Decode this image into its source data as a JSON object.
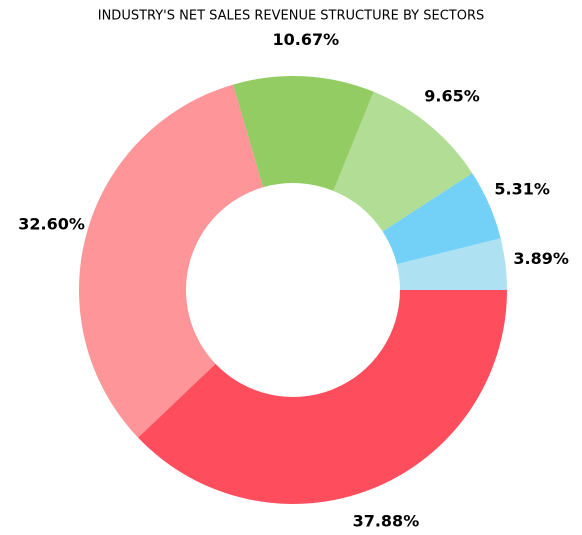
{
  "chart_data": {
    "type": "donut",
    "title": "INDUSTRY'S NET SALES REVENUE STRUCTURE BY SECTORS",
    "series": [
      {
        "values": [
          3.89,
          5.31,
          9.65,
          10.67,
          32.6,
          37.88
        ],
        "value_labels": [
          "3.89%",
          "5.31%",
          "9.65%",
          "10.67%",
          "32.60%",
          "37.88%"
        ],
        "colors": [
          "#aee2f3",
          "#73d0f6",
          "#b1de94",
          "#92cc62",
          "#fe9599",
          "#fe4d5c"
        ]
      }
    ]
  }
}
